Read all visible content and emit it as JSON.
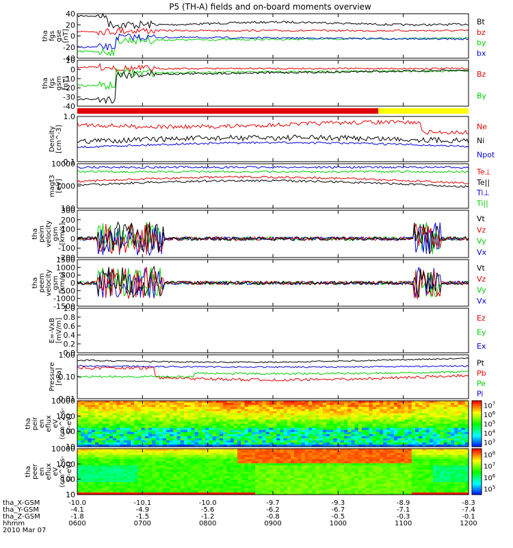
{
  "title": "P5 (TH-A) fields and on-board moments overview",
  "footer": {
    "rows": [
      {
        "label": "tha_X-GSM",
        "values": [
          "-10.0",
          "-10.1",
          "-10.0",
          "-9.7",
          "-9.3",
          "-8.9",
          "-8.3"
        ]
      },
      {
        "label": "tha_Y-GSM",
        "values": [
          "-4.1",
          "-4.9",
          "-5.6",
          "-6.2",
          "-6.7",
          "-7.1",
          "-7.4"
        ]
      },
      {
        "label": "tha_Z-GSM",
        "values": [
          "-1.8",
          "-1.5",
          "-1.2",
          "-0.8",
          "-0.5",
          "-0.3",
          "-0.1"
        ]
      },
      {
        "label": "hhmm",
        "values": [
          "0600",
          "0700",
          "0800",
          "0900",
          "1000",
          "1100",
          "1200"
        ]
      }
    ],
    "date": "2010 Mar 07"
  },
  "colors": {
    "black": "#000000",
    "red": "#e00000",
    "green": "#00d000",
    "blue": "#0000e0",
    "yellow": "#ffff00"
  },
  "chart_data": [
    {
      "type": "line",
      "name": "fgs gse",
      "ylabel": [
        "tha",
        "fgs",
        "gse",
        "[nT]"
      ],
      "ylim": [
        -40,
        40
      ],
      "yticks": [
        "40",
        "20",
        "0",
        "-20",
        "-40"
      ],
      "legend": [
        {
          "text": "Bt",
          "color": "black"
        },
        {
          "text": "bz",
          "color": "red"
        },
        {
          "text": "by",
          "color": "green"
        },
        {
          "text": "bx",
          "color": "blue"
        }
      ]
    },
    {
      "type": "line",
      "name": "fgs gsm",
      "ylabel": [
        "tha",
        "fgs",
        "gsm",
        "[nT]"
      ],
      "ylim": [
        -45,
        10
      ],
      "yticks": [
        "10",
        "0",
        "-10",
        "-20",
        "-30",
        "-40"
      ],
      "legend": [
        {
          "text": "Bz",
          "color": "red"
        },
        {
          "text": "By",
          "color": "green"
        }
      ]
    },
    {
      "type": "bar",
      "name": "mode bar",
      "segments": [
        {
          "from": "0600",
          "to": "1037",
          "color": "red"
        },
        {
          "from": "1037",
          "to": "1200",
          "color": "yellow"
        }
      ]
    },
    {
      "type": "line",
      "name": "density",
      "scale": "log",
      "ylabel": [
        "Density",
        "[cm^-3]"
      ],
      "ylim": [
        0.1,
        1.0
      ],
      "yticks": [
        "1.0",
        "0.1"
      ],
      "legend": [
        {
          "text": "Ne",
          "color": "red"
        },
        {
          "text": "Ni",
          "color": "black"
        },
        {
          "text": "Npot",
          "color": "blue"
        }
      ]
    },
    {
      "type": "line",
      "name": "temperature",
      "scale": "log",
      "ylabel": [
        "magt3",
        "[eV]"
      ],
      "ylim": [
        100,
        10000
      ],
      "yticks": [
        "10000",
        "1000",
        "100"
      ],
      "legend": [
        {
          "text": "Te⊥",
          "color": "red"
        },
        {
          "text": "Te||",
          "color": "black"
        },
        {
          "text": "Ti⊥",
          "color": "blue"
        },
        {
          "text": "Ti||",
          "color": "green"
        }
      ]
    },
    {
      "type": "line",
      "name": "peim velocity",
      "ylabel": [
        "tha",
        "peim",
        "velocity",
        "gsm",
        "[km/s]"
      ],
      "ylim": [
        -200,
        300
      ],
      "yticks": [
        "300",
        "200",
        "100",
        "0",
        "-100",
        "-200"
      ],
      "legend": [
        {
          "text": "Vt",
          "color": "black"
        },
        {
          "text": "Vz",
          "color": "red"
        },
        {
          "text": "Vy",
          "color": "green"
        },
        {
          "text": "Vx",
          "color": "blue"
        }
      ]
    },
    {
      "type": "line",
      "name": "peem velocity",
      "ylabel": [
        "tha",
        "peem",
        "velocity",
        "gsm",
        "[km/s]"
      ],
      "ylim": [
        -1500,
        1500
      ],
      "yticks": [
        "1500",
        "1000",
        "500",
        "0",
        "-500",
        "-1000",
        "-1500"
      ],
      "legend": [
        {
          "text": "Vt",
          "color": "black"
        },
        {
          "text": "Vz",
          "color": "red"
        },
        {
          "text": "Vy",
          "color": "green"
        },
        {
          "text": "Vx",
          "color": "blue"
        }
      ]
    },
    {
      "type": "line",
      "name": "efield",
      "ylabel": [
        "E=-VxB",
        "[mV/m]"
      ],
      "ylim": [
        0,
        1.0
      ],
      "yticks": [
        "1.0",
        "0.8",
        "0.6",
        "0.4",
        "0.2",
        "0.0"
      ],
      "legend": [
        {
          "text": "Ez",
          "color": "red"
        },
        {
          "text": "Ey",
          "color": "green"
        },
        {
          "text": "Ex",
          "color": "blue"
        }
      ]
    },
    {
      "type": "line",
      "name": "pressure",
      "scale": "log",
      "ylabel": [
        "Pressure",
        "[nPa]"
      ],
      "ylim": [
        0.01,
        1.0
      ],
      "yticks": [
        "1.00",
        "0.10",
        "0.01"
      ],
      "legend": [
        {
          "text": "Pt",
          "color": "black"
        },
        {
          "text": "Pb",
          "color": "red"
        },
        {
          "text": "Pe",
          "color": "green"
        },
        {
          "text": "Pi",
          "color": "blue"
        }
      ]
    },
    {
      "type": "heatmap",
      "name": "peir spectrogram",
      "scale": "log",
      "ylabel": [
        "tha",
        "peir",
        "en",
        "eflux",
        "eV",
        "(cm^2-s-",
        "sr-eV)"
      ],
      "ylim": [
        10,
        20000
      ],
      "yticks": [
        "10000",
        "1000",
        "100",
        "10"
      ],
      "colorbar": [
        "10^7",
        "10^6",
        "10^5",
        "10^4",
        "10^3"
      ]
    },
    {
      "type": "heatmap",
      "name": "peer spectrogram",
      "scale": "log",
      "ylabel": [
        "tha",
        "peer",
        "en",
        "eflux",
        "eV",
        "(cm^2-s-",
        "sr-eV)"
      ],
      "ylim": [
        10,
        20000
      ],
      "yticks": [
        "10000",
        "1000",
        "100",
        "10"
      ],
      "colorbar": [
        "10^8",
        "10^7",
        "10^6",
        "10^5"
      ]
    }
  ]
}
